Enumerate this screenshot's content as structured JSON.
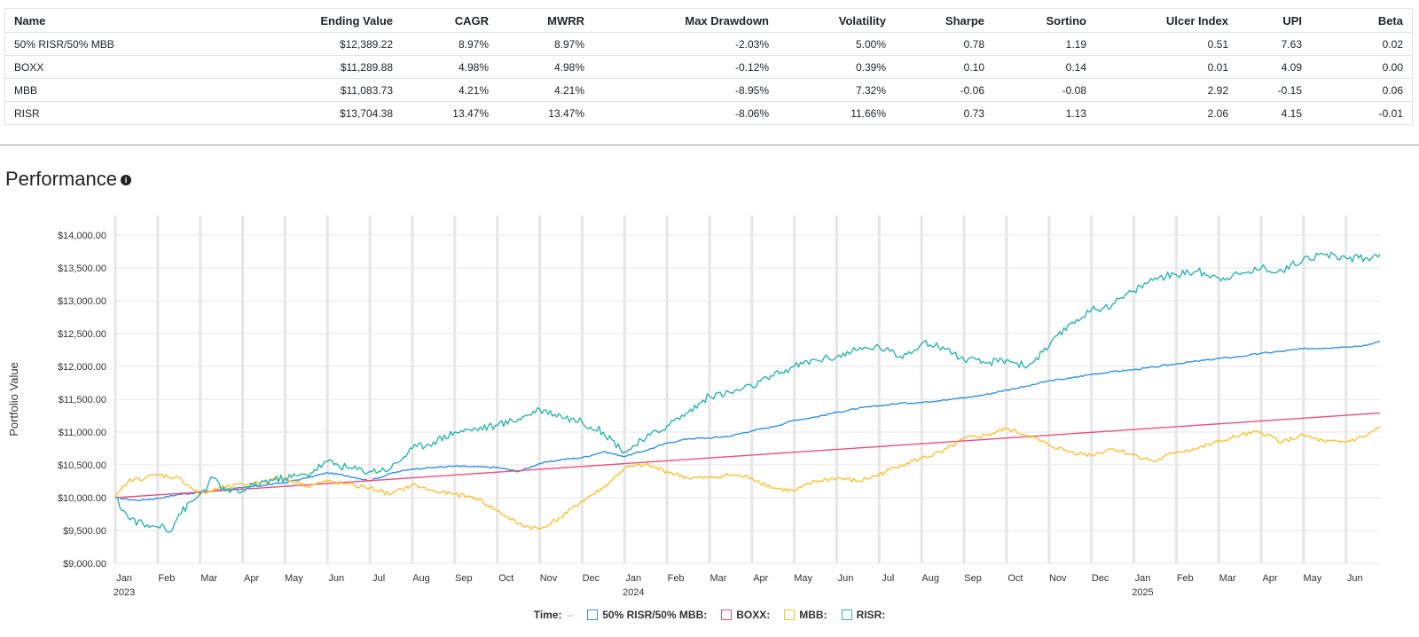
{
  "table": {
    "headers": [
      "Name",
      "Ending Value",
      "CAGR",
      "MWRR",
      "Max Drawdown",
      "Volatility",
      "Sharpe",
      "Sortino",
      "Ulcer Index",
      "UPI",
      "Beta"
    ],
    "rows": [
      [
        "50% RISR/50% MBB",
        "$12,389.22",
        "8.97%",
        "8.97%",
        "-2.03%",
        "5.00%",
        "0.78",
        "1.19",
        "0.51",
        "7.63",
        "0.02"
      ],
      [
        "BOXX",
        "$11,289.88",
        "4.98%",
        "4.98%",
        "-0.12%",
        "0.39%",
        "0.10",
        "0.14",
        "0.01",
        "4.09",
        "0.00"
      ],
      [
        "MBB",
        "$11,083.73",
        "4.21%",
        "4.21%",
        "-8.95%",
        "7.32%",
        "-0.06",
        "-0.08",
        "2.92",
        "-0.15",
        "0.06"
      ],
      [
        "RISR",
        "$13,704.38",
        "13.47%",
        "13.47%",
        "-8.06%",
        "11.66%",
        "0.73",
        "1.13",
        "2.06",
        "4.15",
        "-0.01"
      ]
    ]
  },
  "section": {
    "title": "Performance",
    "info_icon": "info-icon"
  },
  "legend": {
    "time_label": "Time:",
    "time_dash": "–",
    "items": [
      {
        "label": "50% RISR/50% MBB:",
        "color": "#2e93e8"
      },
      {
        "label": "BOXX:",
        "color": "#ee4d7a"
      },
      {
        "label": "MBB:",
        "color": "#fbc02d"
      },
      {
        "label": "RISR:",
        "color": "#2bb5ad"
      }
    ]
  },
  "chart_data": {
    "type": "line",
    "ylabel": "Portfolio Value",
    "ylim": [
      9000,
      14000
    ],
    "yticks": [
      "$9,000.00",
      "$9,500.00",
      "$10,000.00",
      "$10,500.00",
      "$11,000.00",
      "$11,500.00",
      "$12,000.00",
      "$12,500.00",
      "$13,000.00",
      "$13,500.00",
      "$14,000.00"
    ],
    "x_months": [
      "Jan",
      "Feb",
      "Mar",
      "Apr",
      "May",
      "Jun",
      "Jul",
      "Aug",
      "Sep",
      "Oct",
      "Nov",
      "Dec",
      "Jan",
      "Feb",
      "Mar",
      "Apr",
      "May",
      "Jun",
      "Jul",
      "Aug",
      "Sep",
      "Oct",
      "Nov",
      "Dec",
      "Jan",
      "Feb",
      "Mar",
      "Apr",
      "May",
      "Jun"
    ],
    "x_years": [
      {
        "label": "2023",
        "month_index": 0
      },
      {
        "label": "2024",
        "month_index": 12
      },
      {
        "label": "2025",
        "month_index": 24
      }
    ],
    "x_range_months": [
      0,
      29.8
    ],
    "series": [
      {
        "name": "50% RISR/50% MBB",
        "color": "#2e93e8",
        "points": [
          [
            0,
            10000
          ],
          [
            0.5,
            9960
          ],
          [
            1,
            9990
          ],
          [
            1.5,
            10050
          ],
          [
            2,
            10080
          ],
          [
            2.5,
            10120
          ],
          [
            3,
            10150
          ],
          [
            3.5,
            10190
          ],
          [
            4,
            10230
          ],
          [
            4.5,
            10300
          ],
          [
            5,
            10380
          ],
          [
            5.5,
            10330
          ],
          [
            6,
            10260
          ],
          [
            6.5,
            10370
          ],
          [
            7,
            10440
          ],
          [
            7.5,
            10460
          ],
          [
            8,
            10480
          ],
          [
            8.5,
            10470
          ],
          [
            9,
            10460
          ],
          [
            9.5,
            10400
          ],
          [
            10,
            10520
          ],
          [
            10.5,
            10580
          ],
          [
            11,
            10610
          ],
          [
            11.5,
            10700
          ],
          [
            12,
            10630
          ],
          [
            12.5,
            10720
          ],
          [
            13,
            10830
          ],
          [
            13.5,
            10900
          ],
          [
            14,
            10910
          ],
          [
            14.5,
            10940
          ],
          [
            15,
            11020
          ],
          [
            15.5,
            11080
          ],
          [
            16,
            11180
          ],
          [
            16.5,
            11230
          ],
          [
            17,
            11300
          ],
          [
            17.5,
            11360
          ],
          [
            18,
            11400
          ],
          [
            18.5,
            11440
          ],
          [
            19,
            11450
          ],
          [
            19.5,
            11490
          ],
          [
            20,
            11520
          ],
          [
            20.5,
            11570
          ],
          [
            21,
            11640
          ],
          [
            21.5,
            11700
          ],
          [
            22,
            11780
          ],
          [
            22.5,
            11820
          ],
          [
            23,
            11880
          ],
          [
            23.5,
            11920
          ],
          [
            24,
            11950
          ],
          [
            24.5,
            11990
          ],
          [
            25,
            12040
          ],
          [
            25.5,
            12080
          ],
          [
            26,
            12120
          ],
          [
            26.5,
            12150
          ],
          [
            27,
            12200
          ],
          [
            27.5,
            12230
          ],
          [
            28,
            12270
          ],
          [
            28.5,
            12280
          ],
          [
            29,
            12300
          ],
          [
            29.5,
            12320
          ],
          [
            29.8,
            12389
          ]
        ]
      },
      {
        "name": "BOXX",
        "color": "#ee4d7a",
        "points": [
          [
            0,
            10000
          ],
          [
            29.8,
            11290
          ]
        ]
      },
      {
        "name": "MBB",
        "color": "#fbc02d",
        "points": [
          [
            0,
            10000
          ],
          [
            0.3,
            10250
          ],
          [
            1,
            10350
          ],
          [
            1.5,
            10300
          ],
          [
            2,
            10050
          ],
          [
            2.5,
            10150
          ],
          [
            3,
            10200
          ],
          [
            3.5,
            10250
          ],
          [
            4,
            10300
          ],
          [
            4.5,
            10180
          ],
          [
            5,
            10250
          ],
          [
            5.5,
            10200
          ],
          [
            6,
            10150
          ],
          [
            6.5,
            10050
          ],
          [
            7,
            10200
          ],
          [
            7.5,
            10100
          ],
          [
            8,
            10050
          ],
          [
            8.5,
            10000
          ],
          [
            9,
            9800
          ],
          [
            9.5,
            9600
          ],
          [
            10,
            9520
          ],
          [
            10.5,
            9700
          ],
          [
            11,
            9950
          ],
          [
            11.5,
            10150
          ],
          [
            12,
            10450
          ],
          [
            12.5,
            10500
          ],
          [
            13,
            10400
          ],
          [
            13.5,
            10300
          ],
          [
            14,
            10300
          ],
          [
            14.5,
            10350
          ],
          [
            15,
            10300
          ],
          [
            15.5,
            10150
          ],
          [
            16,
            10100
          ],
          [
            16.5,
            10250
          ],
          [
            17,
            10300
          ],
          [
            17.5,
            10250
          ],
          [
            18,
            10350
          ],
          [
            18.5,
            10500
          ],
          [
            19,
            10600
          ],
          [
            19.5,
            10700
          ],
          [
            20,
            10900
          ],
          [
            20.5,
            10950
          ],
          [
            21,
            11050
          ],
          [
            21.5,
            10950
          ],
          [
            22,
            10800
          ],
          [
            22.5,
            10700
          ],
          [
            23,
            10650
          ],
          [
            23.5,
            10750
          ],
          [
            24,
            10650
          ],
          [
            24.5,
            10550
          ],
          [
            25,
            10700
          ],
          [
            25.5,
            10750
          ],
          [
            26,
            10850
          ],
          [
            26.5,
            10950
          ],
          [
            27,
            11000
          ],
          [
            27.5,
            10850
          ],
          [
            28,
            10950
          ],
          [
            28.5,
            10850
          ],
          [
            29,
            10850
          ],
          [
            29.5,
            10950
          ],
          [
            29.8,
            11084
          ]
        ]
      },
      {
        "name": "RISR",
        "color": "#2bb5ad",
        "points": [
          [
            0,
            10000
          ],
          [
            0.3,
            9700
          ],
          [
            0.8,
            9550
          ],
          [
            1.1,
            9600
          ],
          [
            1.3,
            9480
          ],
          [
            1.5,
            9750
          ],
          [
            2,
            10050
          ],
          [
            2.3,
            10300
          ],
          [
            2.6,
            10100
          ],
          [
            3,
            10100
          ],
          [
            3.5,
            10250
          ],
          [
            4,
            10300
          ],
          [
            4.5,
            10350
          ],
          [
            5,
            10550
          ],
          [
            5.5,
            10450
          ],
          [
            6,
            10400
          ],
          [
            6.5,
            10450
          ],
          [
            7,
            10750
          ],
          [
            7.5,
            10850
          ],
          [
            8,
            11000
          ],
          [
            8.5,
            11050
          ],
          [
            9,
            11100
          ],
          [
            9.5,
            11200
          ],
          [
            10,
            11350
          ],
          [
            10.5,
            11250
          ],
          [
            11,
            11150
          ],
          [
            11.5,
            11000
          ],
          [
            12,
            10700
          ],
          [
            12.5,
            10900
          ],
          [
            13,
            11100
          ],
          [
            13.5,
            11300
          ],
          [
            14,
            11550
          ],
          [
            14.5,
            11600
          ],
          [
            15,
            11700
          ],
          [
            15.5,
            11850
          ],
          [
            16,
            12000
          ],
          [
            16.5,
            12100
          ],
          [
            17,
            12150
          ],
          [
            17.5,
            12250
          ],
          [
            18,
            12300
          ],
          [
            18.5,
            12150
          ],
          [
            19,
            12350
          ],
          [
            19.5,
            12300
          ],
          [
            20,
            12100
          ],
          [
            20.5,
            12050
          ],
          [
            21,
            12100
          ],
          [
            21.5,
            12000
          ],
          [
            22,
            12300
          ],
          [
            22.5,
            12650
          ],
          [
            23,
            12850
          ],
          [
            23.5,
            12950
          ],
          [
            24,
            13150
          ],
          [
            24.5,
            13350
          ],
          [
            25,
            13400
          ],
          [
            25.5,
            13450
          ],
          [
            26,
            13350
          ],
          [
            26.5,
            13400
          ],
          [
            27,
            13500
          ],
          [
            27.5,
            13450
          ],
          [
            28,
            13650
          ],
          [
            28.5,
            13700
          ],
          [
            29,
            13650
          ],
          [
            29.5,
            13650
          ],
          [
            29.8,
            13704
          ]
        ]
      }
    ]
  }
}
